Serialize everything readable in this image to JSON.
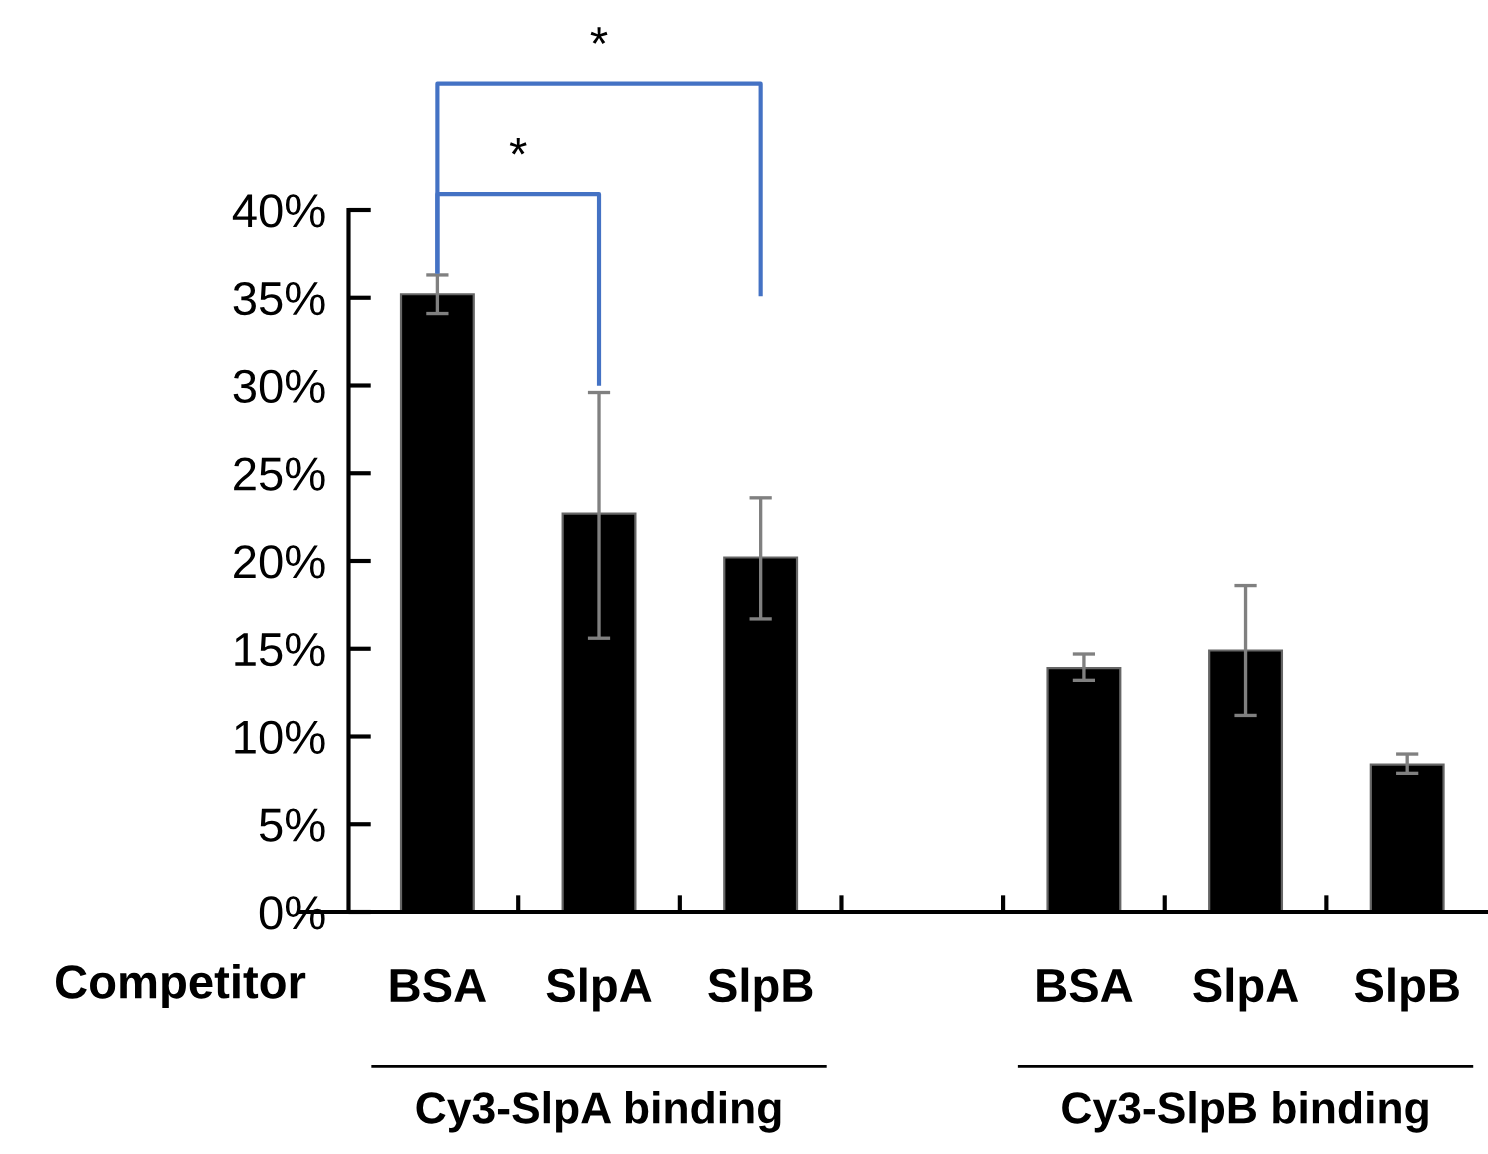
{
  "chart_data": {
    "type": "bar",
    "xlabel": "Competitor",
    "categories": [
      "BSA",
      "SlpA",
      "SlpB",
      null,
      "BSA",
      "SlpA",
      "SlpB"
    ],
    "values": [
      35.2,
      22.7,
      20.2,
      null,
      13.9,
      14.9,
      8.4
    ],
    "errors": [
      [
        34.1,
        36.3
      ],
      [
        15.6,
        29.6
      ],
      [
        16.7,
        23.6
      ],
      null,
      [
        13.2,
        14.7
      ],
      [
        11.2,
        18.6
      ],
      [
        7.9,
        9.0
      ]
    ],
    "color": "#000000",
    "ylim": [
      0,
      40
    ],
    "yticks": [
      {
        "value": 0,
        "label": "0%"
      },
      {
        "value": 5,
        "label": "5%"
      },
      {
        "value": 10,
        "label": "10%"
      },
      {
        "value": 15,
        "label": "15%"
      },
      {
        "value": 20,
        "label": "20%"
      },
      {
        "value": 25,
        "label": "25%"
      },
      {
        "value": 30,
        "label": "30%"
      },
      {
        "value": 35,
        "label": "35%"
      },
      {
        "value": 40,
        "label": "40%"
      }
    ],
    "annotations": [
      "*",
      "*",
      "Cy3-SlpA binding",
      "Cy3-SlpB binding"
    ],
    "grid": false,
    "legend": false
  }
}
